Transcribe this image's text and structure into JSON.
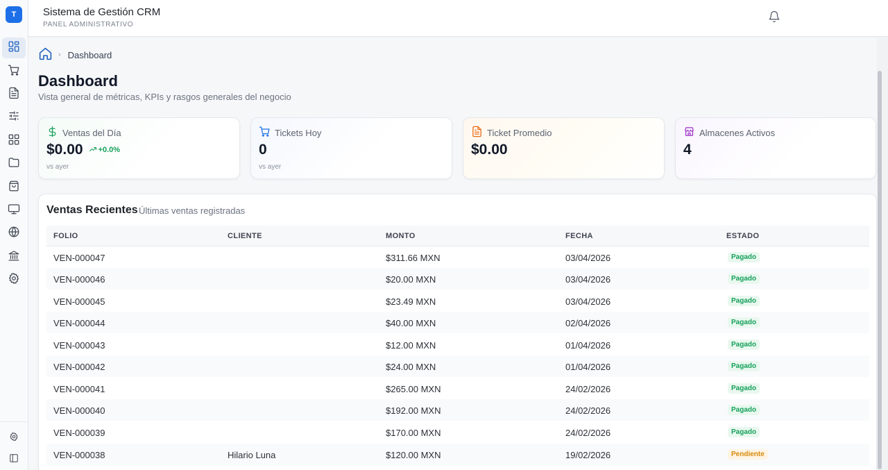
{
  "sidebar": {
    "logo_letter": "T",
    "items": [
      {
        "name": "dashboard",
        "icon": "grid-dashboard-icon",
        "active": true
      },
      {
        "name": "ventas",
        "icon": "shopping-cart-icon"
      },
      {
        "name": "documentos",
        "icon": "file-text-icon"
      },
      {
        "name": "ajustes",
        "icon": "sliders-icon"
      },
      {
        "name": "modulos",
        "icon": "grid-icon"
      },
      {
        "name": "carpetas",
        "icon": "folder-icon"
      },
      {
        "name": "productos",
        "icon": "package-icon"
      },
      {
        "name": "pos",
        "icon": "monitor-icon"
      },
      {
        "name": "web",
        "icon": "globe-icon"
      },
      {
        "name": "bancos",
        "icon": "bank-icon"
      },
      {
        "name": "configuracion",
        "icon": "gear-icon"
      }
    ],
    "bottom": [
      {
        "name": "settings",
        "icon": "gear-icon"
      },
      {
        "name": "collapse",
        "icon": "sidebar-toggle-icon"
      }
    ]
  },
  "header": {
    "title": "Sistema de Gestión CRM",
    "subtitle": "PANEL ADMINISTRATIVO",
    "notification_icon": "bell-icon"
  },
  "breadcrumb": {
    "current": "Dashboard"
  },
  "page": {
    "title": "Dashboard",
    "description": "Vista general de métricas, KPIs y rasgos generales del negocio"
  },
  "kpis": [
    {
      "label": "Ventas del Día",
      "value": "$0.00",
      "trend": "+0.0%",
      "footnote": "vs ayer",
      "icon": "dollar-icon",
      "color": "#15a05a"
    },
    {
      "label": "Tickets Hoy",
      "value": "0",
      "footnote": "vs ayer",
      "icon": "shopping-cart-icon",
      "color": "#1d6fe8"
    },
    {
      "label": "Ticket Promedio",
      "value": "$0.00",
      "icon": "receipt-icon",
      "color": "#ea6a12"
    },
    {
      "label": "Almacenes Activos",
      "value": "4",
      "icon": "store-icon",
      "color": "#a033c9"
    }
  ],
  "recent_sales": {
    "title": "Ventas Recientes",
    "subtitle": "Últimas ventas registradas",
    "columns": [
      "FOLIO",
      "CLIENTE",
      "MONTO",
      "FECHA",
      "ESTADO"
    ],
    "rows": [
      {
        "folio": "VEN-000047",
        "cliente": "",
        "monto": "$311.66 MXN",
        "fecha": "03/04/2026",
        "estado": "Pagado"
      },
      {
        "folio": "VEN-000046",
        "cliente": "",
        "monto": "$20.00 MXN",
        "fecha": "03/04/2026",
        "estado": "Pagado"
      },
      {
        "folio": "VEN-000045",
        "cliente": "",
        "monto": "$23.49 MXN",
        "fecha": "03/04/2026",
        "estado": "Pagado"
      },
      {
        "folio": "VEN-000044",
        "cliente": "",
        "monto": "$40.00 MXN",
        "fecha": "02/04/2026",
        "estado": "Pagado"
      },
      {
        "folio": "VEN-000043",
        "cliente": "",
        "monto": "$12.00 MXN",
        "fecha": "01/04/2026",
        "estado": "Pagado"
      },
      {
        "folio": "VEN-000042",
        "cliente": "",
        "monto": "$24.00 MXN",
        "fecha": "01/04/2026",
        "estado": "Pagado"
      },
      {
        "folio": "VEN-000041",
        "cliente": "",
        "monto": "$265.00 MXN",
        "fecha": "24/02/2026",
        "estado": "Pagado"
      },
      {
        "folio": "VEN-000040",
        "cliente": "",
        "monto": "$192.00 MXN",
        "fecha": "24/02/2026",
        "estado": "Pagado"
      },
      {
        "folio": "VEN-000039",
        "cliente": "",
        "monto": "$170.00 MXN",
        "fecha": "24/02/2026",
        "estado": "Pagado"
      },
      {
        "folio": "VEN-000038",
        "cliente": "Hilario Luna",
        "monto": "$120.00 MXN",
        "fecha": "19/02/2026",
        "estado": "Pendiente"
      }
    ]
  },
  "colors": {
    "accent": "#1d6fe8",
    "paid": "#15a05a",
    "pending": "#d88a0b"
  }
}
